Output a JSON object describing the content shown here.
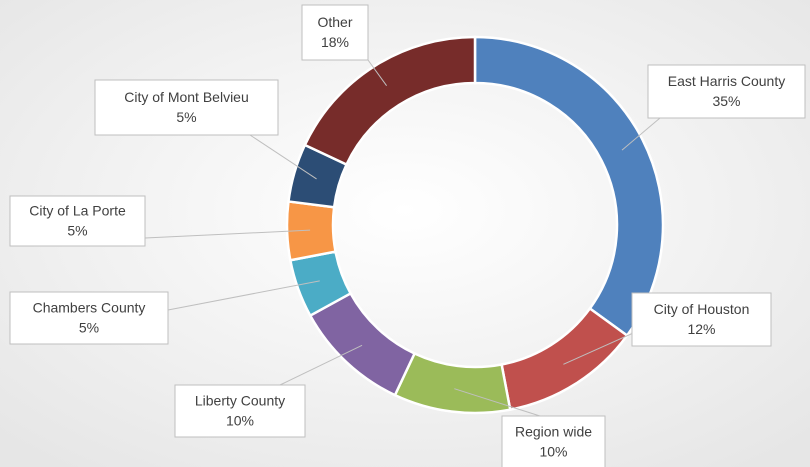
{
  "chart_data": {
    "type": "donut",
    "categories": [
      "East Harris County",
      "City of Houston",
      "Region wide",
      "Liberty County",
      "Chambers County",
      "City of La Porte",
      "City of Mont Belvieu",
      "Other"
    ],
    "values": [
      35,
      12,
      10,
      10,
      5,
      5,
      5,
      18
    ],
    "value_labels": [
      "35%",
      "12%",
      "10%",
      "10%",
      "5%",
      "5%",
      "5%",
      "18%"
    ],
    "colors": [
      "#4f81bd",
      "#c0504d",
      "#9bbb59",
      "#8064a2",
      "#4bacc6",
      "#f79646",
      "#2c4d75",
      "#772c2a"
    ]
  }
}
